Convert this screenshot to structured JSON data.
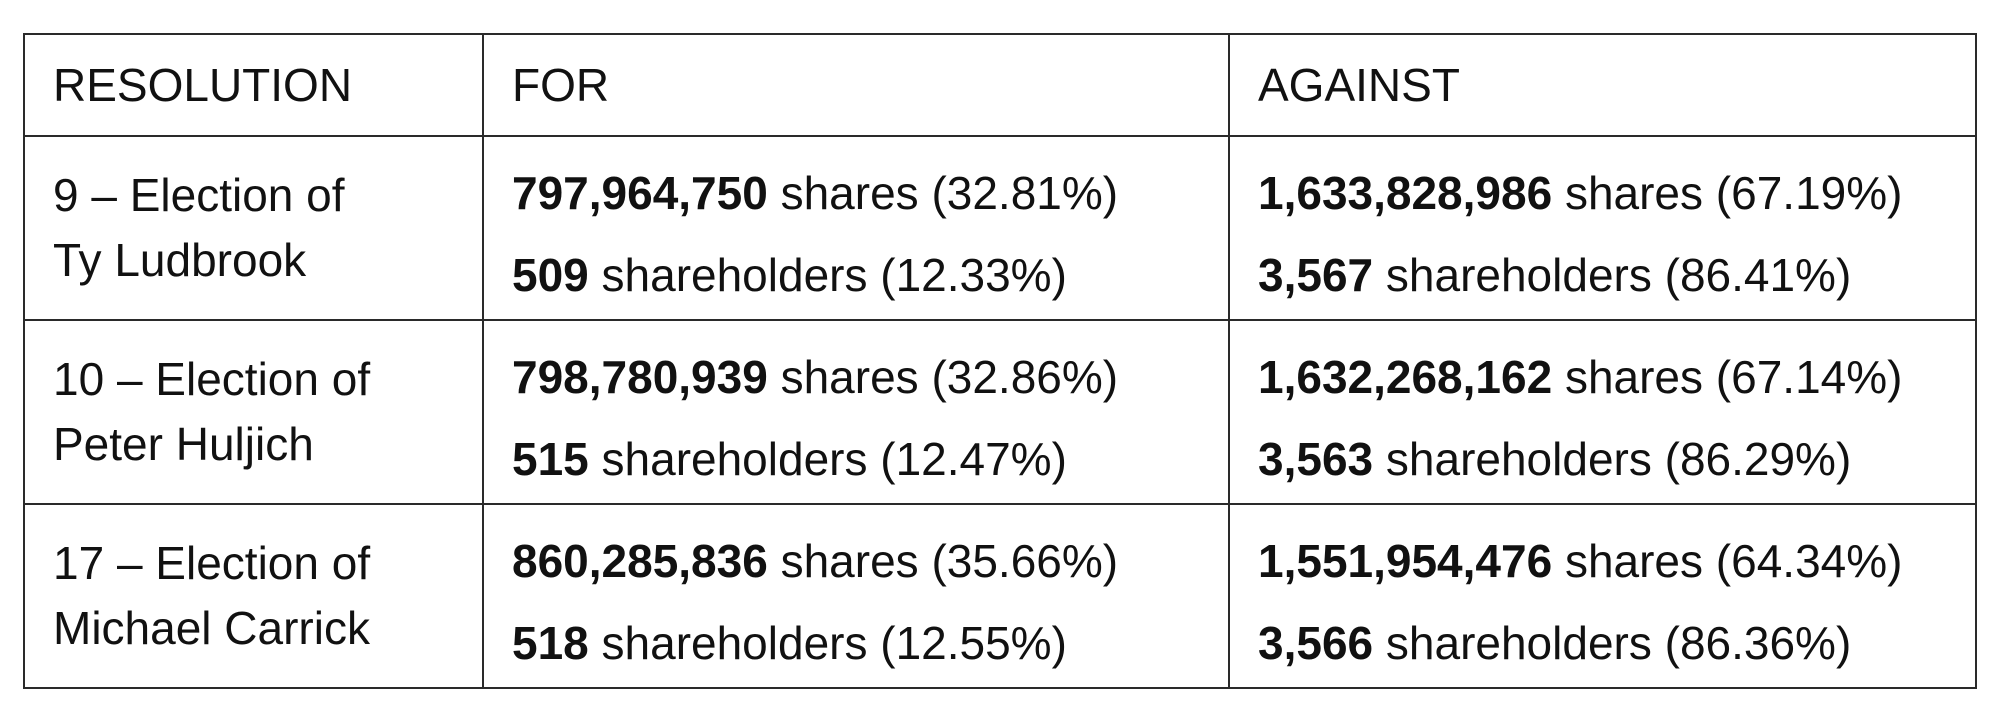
{
  "table": {
    "headers": {
      "resolution": "RESOLUTION",
      "for": "FOR",
      "against": "AGAINST"
    },
    "rows": [
      {
        "resolution": "9 – Election of Ty Ludbrook",
        "for": {
          "shares_value": "797,964,750",
          "shares_text": " shares (32.81%)",
          "holders_value": "509",
          "holders_text": " shareholders (12.33%)"
        },
        "against": {
          "shares_value": "1,633,828,986",
          "shares_text": " shares (67.19%)",
          "holders_value": "3,567",
          "holders_text": " shareholders (86.41%)"
        }
      },
      {
        "resolution": "10 – Election of Peter Huljich",
        "for": {
          "shares_value": "798,780,939",
          "shares_text": " shares (32.86%)",
          "holders_value": "515",
          "holders_text": " shareholders (12.47%)"
        },
        "against": {
          "shares_value": "1,632,268,162",
          "shares_text": " shares (67.14%)",
          "holders_value": "3,563",
          "holders_text": " shareholders (86.29%)"
        }
      },
      {
        "resolution": "17 – Election of Michael Carrick",
        "for": {
          "shares_value": "860,285,836",
          "shares_text": " shares (35.66%)",
          "holders_value": "518",
          "holders_text": " shareholders (12.55%)"
        },
        "against": {
          "shares_value": "1,551,954,476",
          "shares_text": " shares (64.34%)",
          "holders_value": "3,566",
          "holders_text": " shareholders (86.36%)"
        }
      }
    ]
  }
}
